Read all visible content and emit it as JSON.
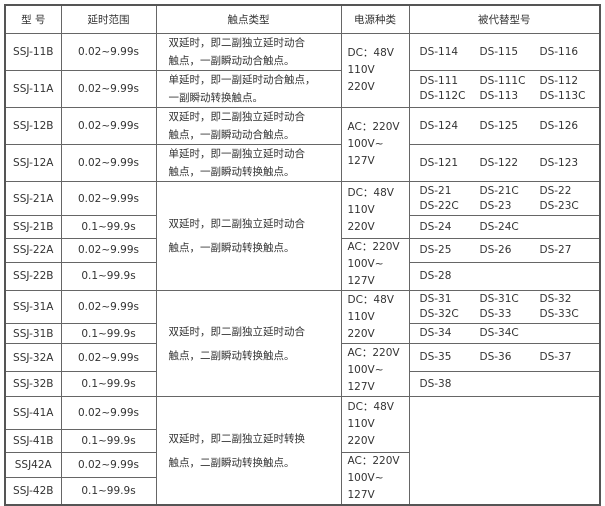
{
  "header": [
    "型 号",
    "延时范围",
    "触点类型",
    "电源种类",
    "被代替型号"
  ],
  "rows": [
    {
      "model": "SSJ-11B",
      "delay": "0.02~9.99s"
    },
    {
      "model": "SSJ-11A",
      "delay": "0.02~9.99s"
    },
    {
      "model": "SSJ-12B",
      "delay": "0.02~9.99s"
    },
    {
      "model": "SSJ-12A",
      "delay": "0.02~9.99s"
    },
    {
      "model": "SSJ-21A",
      "delay": "0.02~9.99s"
    },
    {
      "model": "SSJ-21B",
      "delay": "0.1~99.9s"
    },
    {
      "model": "SSJ-22A",
      "delay": "0.02~9.99s"
    },
    {
      "model": "SSJ-22B",
      "delay": "0.1~99.9s"
    },
    {
      "model": "SSJ-31A",
      "delay": "0.02~9.99s"
    },
    {
      "model": "SSJ-31B",
      "delay": "0.1~99.9s"
    },
    {
      "model": "SSJ-32A",
      "delay": "0.02~9.99s"
    },
    {
      "model": "SSJ-32B",
      "delay": "0.1~99.9s"
    },
    {
      "model": "SSJ-41A",
      "delay": "0.02~9.99s"
    },
    {
      "model": "SSJ-41B",
      "delay": "0.1~99.9s"
    },
    {
      "model": "SSJ42A",
      "delay": "0.02~9.99s"
    },
    {
      "model": "SSJ-42B",
      "delay": "0.1~99.9s"
    }
  ],
  "contacts": [
    {
      "start": 0,
      "span": 1,
      "lines": [
        "双延时，即二副独立延时动合",
        "触点，一副瞬动动合触点。"
      ]
    },
    {
      "start": 1,
      "span": 1,
      "lines": [
        "单延时，即一副延时动合触点，",
        "一副瞬动转换触点。"
      ]
    },
    {
      "start": 2,
      "span": 1,
      "lines": [
        "双延时，即二副独立延时动合",
        "触点，一副瞬动动合触点。"
      ]
    },
    {
      "start": 3,
      "span": 1,
      "lines": [
        "单延时，即一副独立延时动合",
        "触点，一副瞬动转换触点。"
      ]
    },
    {
      "start": 4,
      "span": 4,
      "lines": [
        "双延时，即二副独立延时动合",
        "触点，一副瞬动转换触点。"
      ]
    },
    {
      "start": 8,
      "span": 4,
      "lines": [
        "双延时，即二副独立延时动合",
        "触点，二副瞬动转换触点。"
      ]
    },
    {
      "start": 12,
      "span": 4,
      "lines": [
        "双延时，即二副独立延时转换",
        "触点，二副瞬动转换触点。"
      ]
    }
  ],
  "power": [
    {
      "start": 0,
      "span": 2,
      "lines": [
        "DC：48V",
        "110V",
        "220V"
      ]
    },
    {
      "start": 2,
      "span": 2,
      "lines": [
        "AC：220V",
        "100V~",
        "127V"
      ]
    },
    {
      "start": 4,
      "span": 2,
      "lines": [
        "DC：48V",
        "110V",
        "220V"
      ]
    },
    {
      "start": 6,
      "span": 2,
      "lines": [
        "AC：220V",
        "100V~",
        "127V"
      ]
    },
    {
      "start": 8,
      "span": 2,
      "lines": [
        "DC：48V",
        "110V",
        "220V"
      ]
    },
    {
      "start": 10,
      "span": 2,
      "lines": [
        "AC：220V",
        "100V~",
        "127V"
      ]
    },
    {
      "start": 12,
      "span": 2,
      "lines": [
        "DC：48V",
        "110V",
        "220V"
      ]
    },
    {
      "start": 14,
      "span": 2,
      "lines": [
        "AC：220V",
        "100V~",
        "127V"
      ]
    }
  ],
  "replaced": [
    {
      "start": 0,
      "span": 1,
      "lines": [
        [
          "DS-114",
          "DS-115",
          "DS-116"
        ]
      ]
    },
    {
      "start": 1,
      "span": 1,
      "lines": [
        [
          "DS-111",
          "DS-111C",
          "DS-112"
        ],
        [
          "DS-112C",
          "DS-113",
          "DS-113C"
        ]
      ]
    },
    {
      "start": 2,
      "span": 1,
      "lines": [
        [
          "DS-124",
          "DS-125",
          "DS-126"
        ]
      ]
    },
    {
      "start": 3,
      "span": 1,
      "lines": [
        [
          "DS-121",
          "DS-122",
          "DS-123"
        ]
      ]
    },
    {
      "start": 4,
      "span": 1,
      "lines": [
        [
          "DS-21",
          "DS-21C",
          "DS-22"
        ],
        [
          "DS-22C",
          "DS-23",
          "DS-23C"
        ]
      ]
    },
    {
      "start": 5,
      "span": 1,
      "lines": [
        [
          "DS-24",
          "DS-24C"
        ]
      ]
    },
    {
      "start": 6,
      "span": 1,
      "lines": [
        [
          "DS-25",
          "DS-26",
          "DS-27"
        ]
      ]
    },
    {
      "start": 7,
      "span": 1,
      "lines": [
        [
          "DS-28"
        ]
      ]
    },
    {
      "start": 8,
      "span": 1,
      "lines": [
        [
          "DS-31",
          "DS-31C",
          "DS-32"
        ],
        [
          "DS-32C",
          "DS-33",
          "DS-33C"
        ]
      ]
    },
    {
      "start": 9,
      "span": 1,
      "lines": [
        [
          "DS-34",
          "DS-34C"
        ]
      ]
    },
    {
      "start": 10,
      "span": 1,
      "lines": [
        [
          "DS-35",
          "DS-36",
          "DS-37"
        ]
      ]
    },
    {
      "start": 11,
      "span": 1,
      "lines": [
        [
          "DS-38"
        ]
      ]
    },
    {
      "start": 12,
      "span": 4,
      "lines": []
    }
  ]
}
